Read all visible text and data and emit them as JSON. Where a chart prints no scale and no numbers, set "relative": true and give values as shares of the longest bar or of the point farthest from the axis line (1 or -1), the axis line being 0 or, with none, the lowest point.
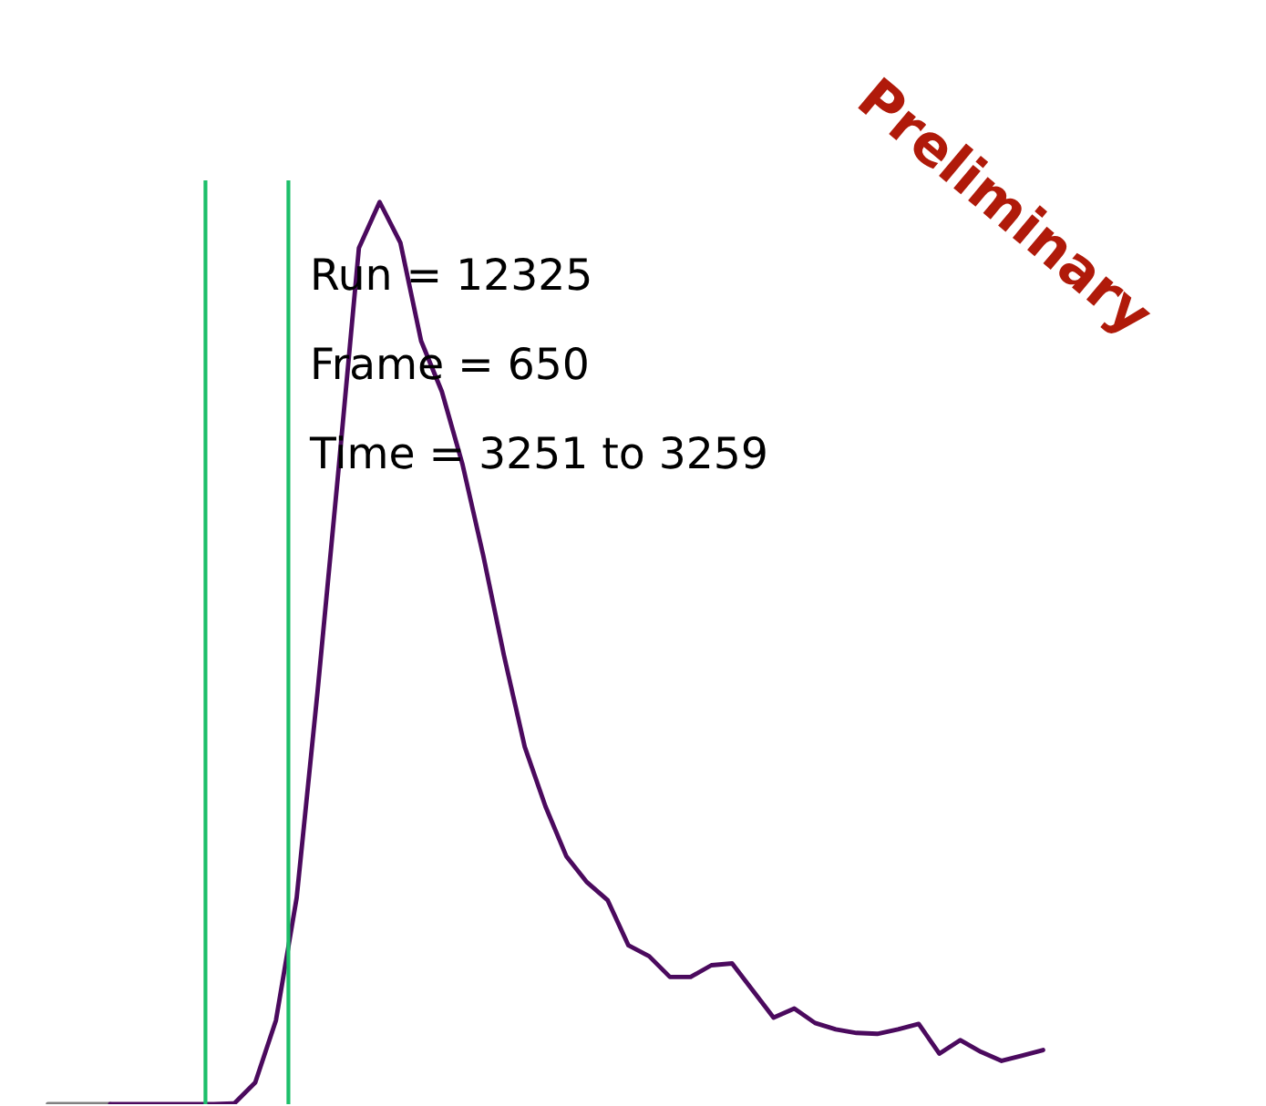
{
  "chart_data": {
    "type": "line",
    "relative": true,
    "categories": [
      null,
      null,
      null,
      null,
      null,
      null,
      null,
      null,
      null,
      null,
      null,
      null,
      null,
      null,
      null,
      null,
      null,
      null,
      null,
      null,
      null,
      null,
      null,
      null,
      null,
      null,
      null,
      null,
      null,
      null,
      null,
      null,
      null,
      null,
      null,
      null,
      null,
      null,
      null,
      null,
      null,
      null,
      null,
      null,
      null,
      null,
      null,
      null,
      null
    ],
    "series": [
      {
        "color": "#808080",
        "values": [
          0,
          0,
          0,
          0,
          null,
          null,
          null,
          null,
          null,
          null,
          null,
          null,
          null,
          null,
          null,
          null,
          null,
          null,
          null,
          null,
          null,
          null,
          null,
          null,
          null,
          null,
          null,
          null,
          null,
          null,
          null,
          null,
          null,
          null,
          null,
          null,
          null,
          null,
          null,
          null,
          null,
          null,
          null,
          null,
          null,
          null,
          null,
          null,
          null
        ]
      },
      {
        "color": "#4b0a5e",
        "values": [
          null,
          null,
          null,
          0,
          0,
          0,
          0,
          0,
          0,
          0.001,
          0.024,
          0.093,
          0.229,
          0.456,
          0.699,
          0.949,
          1.0,
          0.955,
          0.846,
          0.79,
          0.709,
          0.608,
          0.497,
          0.396,
          0.33,
          0.275,
          0.246,
          0.226,
          0.176,
          0.164,
          0.141,
          0.141,
          0.154,
          0.156,
          0.126,
          0.096,
          0.106,
          0.09,
          0.083,
          0.079,
          0.078,
          0.083,
          0.089,
          0.056,
          0.071,
          0.058,
          0.048,
          0.054,
          0.06
        ]
      }
    ],
    "annotations": [
      "Run = 12325",
      "Frame = 650",
      "Time = 3251 to 3259",
      "Preliminary"
    ],
    "tick_labels": false
  }
}
